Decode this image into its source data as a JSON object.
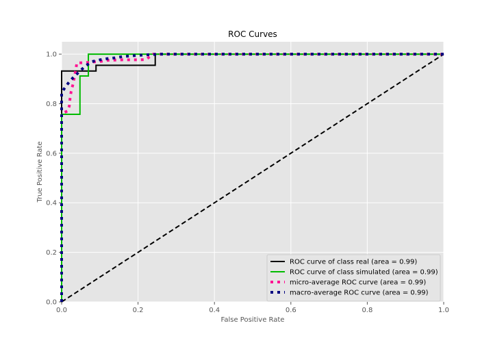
{
  "chart_data": {
    "type": "line",
    "title": "ROC Curves",
    "xlabel": "False Positive Rate",
    "ylabel": "True Positive Rate",
    "xlim": [
      0.0,
      1.0
    ],
    "ylim": [
      0.0,
      1.05
    ],
    "xticks": [
      "0.0",
      "0.2",
      "0.4",
      "0.6",
      "0.8",
      "1.0"
    ],
    "yticks": [
      "0.0",
      "0.2",
      "0.4",
      "0.6",
      "0.8",
      "1.0"
    ],
    "grid": true,
    "legend_position": "lower-right",
    "series": [
      {
        "name": "ROC curve of class real (area = 0.99)",
        "style": "solid",
        "color": "#000000",
        "x": [
          0.0,
          0.0,
          0.0,
          0.09,
          0.09,
          0.245,
          0.245,
          1.0
        ],
        "y": [
          0.0,
          0.76,
          0.932,
          0.932,
          0.955,
          0.955,
          1.0,
          1.0
        ]
      },
      {
        "name": "ROC curve of class simulated (area = 0.99)",
        "style": "solid",
        "color": "#00bb00",
        "x": [
          0.0,
          0.0,
          0.048,
          0.048,
          0.07,
          0.07,
          1.0
        ],
        "y": [
          0.0,
          0.757,
          0.757,
          0.912,
          0.912,
          1.0,
          1.0
        ]
      },
      {
        "name": "micro-average ROC curve (area = 0.99)",
        "style": "dotted",
        "color": "#ff1493",
        "x": [
          0.0,
          0.0,
          0.015,
          0.02,
          0.022,
          0.025,
          0.03,
          0.035,
          0.04,
          0.06,
          0.075,
          0.1,
          0.12,
          0.14,
          0.16,
          0.18,
          0.2,
          0.22,
          0.24,
          0.26,
          0.3,
          0.4,
          0.5,
          0.6,
          0.7,
          0.8,
          0.9,
          1.0
        ],
        "y": [
          0.0,
          0.76,
          0.77,
          0.79,
          0.82,
          0.85,
          0.88,
          0.92,
          0.965,
          0.965,
          0.968,
          0.97,
          0.975,
          0.976,
          0.977,
          0.977,
          0.977,
          0.978,
          1.0,
          1.0,
          1.0,
          1.0,
          1.0,
          1.0,
          1.0,
          1.0,
          1.0,
          1.0
        ]
      },
      {
        "name": "macro-average ROC curve (area = 0.99)",
        "style": "dotted",
        "color": "#000080",
        "x": [
          0.0,
          0.0,
          0.01,
          0.02,
          0.03,
          0.04,
          0.05,
          0.065,
          0.08,
          0.1,
          0.12,
          0.14,
          0.16,
          0.18,
          0.2,
          0.22,
          0.26,
          0.3,
          0.4,
          0.5,
          0.6,
          0.7,
          0.8,
          0.9,
          1.0
        ],
        "y": [
          0.0,
          0.845,
          0.868,
          0.888,
          0.905,
          0.92,
          0.935,
          0.955,
          0.97,
          0.977,
          0.982,
          0.985,
          0.99,
          0.993,
          0.995,
          0.997,
          1.0,
          1.0,
          1.0,
          1.0,
          1.0,
          1.0,
          1.0,
          1.0,
          1.0
        ]
      },
      {
        "name": "",
        "style": "dashed",
        "color": "#000000",
        "x": [
          0.0,
          1.0
        ],
        "y": [
          0.0,
          1.0
        ]
      }
    ]
  }
}
